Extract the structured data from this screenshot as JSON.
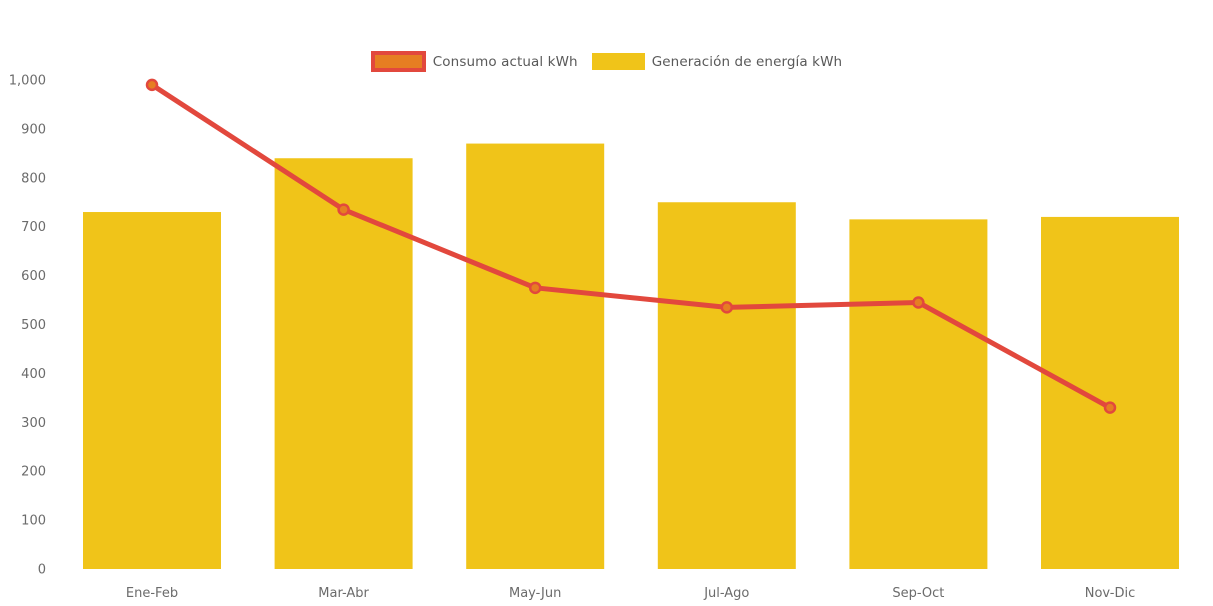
{
  "chart_data": {
    "type": "combo",
    "title": "",
    "categories": [
      "Ene-Feb",
      "Mar-Abr",
      "May-Jun",
      "Jul-Ago",
      "Sep-Oct",
      "Nov-Dic"
    ],
    "series": [
      {
        "name": "Consumo actual kWh",
        "type": "line",
        "color": "#E2483D",
        "marker_fill": "#E67E22",
        "values": [
          990,
          735,
          575,
          535,
          545,
          330
        ]
      },
      {
        "name": "Generación de energía kWh",
        "type": "bar",
        "color": "#F0C419",
        "values": [
          730,
          840,
          870,
          750,
          715,
          720
        ]
      }
    ],
    "xlabel": "",
    "ylabel": "",
    "ylim": [
      0,
      1000
    ],
    "ytick_step": 100,
    "y_tick_labels": [
      "0",
      "100",
      "200",
      "300",
      "400",
      "500",
      "600",
      "700",
      "800",
      "900",
      "1,000"
    ],
    "grid": false,
    "legend_position": "top",
    "axis_text_color": "#6b6b6b",
    "legend_text_color": "#595959",
    "background_color": "#ffffff"
  }
}
